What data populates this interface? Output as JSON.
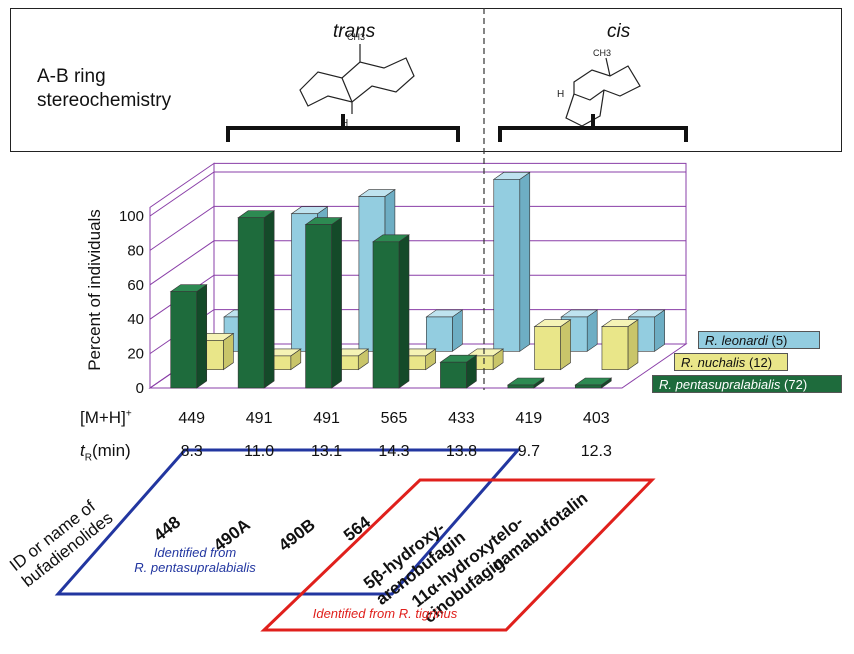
{
  "header": {
    "title_line1": "A-B ring",
    "title_line2": "stereochemistry",
    "trans_label": "trans",
    "cis_label": "cis",
    "methyl_label": "CH3",
    "h_label": "H"
  },
  "chart_data": {
    "type": "bar",
    "ylabel": "Percent of individuals",
    "yticks": [
      0,
      20,
      40,
      60,
      80,
      100
    ],
    "ylim": [
      0,
      100
    ],
    "categories": [
      "449",
      "491",
      "491",
      "565",
      "433",
      "419",
      "403"
    ],
    "series": [
      {
        "name": "R. pentasupralabialis",
        "count": "(72)",
        "color": "#1e6b3c",
        "values": [
          56,
          99,
          95,
          85,
          15,
          1,
          1
        ]
      },
      {
        "name": "R. nuchalis",
        "count": "(12)",
        "color": "#e9e689",
        "values": [
          17,
          8,
          8,
          8,
          8,
          25,
          25
        ]
      },
      {
        "name": "R. leonardi",
        "count": "(5)",
        "color": "#93cde0",
        "values": [
          20,
          80,
          90,
          20,
          100,
          20,
          20
        ]
      }
    ],
    "regions": [
      {
        "label": "trans",
        "columns": [
          0,
          1,
          2,
          3,
          4
        ]
      },
      {
        "label": "cis",
        "columns": [
          5,
          6
        ]
      }
    ]
  },
  "table": {
    "mh_label": "[M+H]",
    "mh_sup": "+",
    "tr_label_t": "t",
    "tr_label_sub": "R",
    "tr_label_rest": "(min)",
    "mh_values": [
      "449",
      "491",
      "491",
      "565",
      "433",
      "419",
      "403"
    ],
    "tr_values": [
      "8.3",
      "11.0",
      "13.1",
      "14.3",
      "13.8",
      "9.7",
      "12.3"
    ]
  },
  "compounds": {
    "axis_label_line1": "ID or name of",
    "axis_label_line2": "bufadienolides",
    "items": [
      {
        "line1": "448",
        "line2": ""
      },
      {
        "line1": "490A",
        "line2": ""
      },
      {
        "line1": "490B",
        "line2": ""
      },
      {
        "line1": "564",
        "line2": ""
      },
      {
        "line1": "5β-hydroxy-",
        "line2": "arenobufagin"
      },
      {
        "line1": "11α-hydroxytelo-",
        "line2": "cinobufagin"
      },
      {
        "line1": "gamabufotalin",
        "line2": ""
      }
    ],
    "identified_blue_line1": "Identified from",
    "identified_blue_line2": "R. pentasupralabialis",
    "identified_red": "Identified from R. tigrinus"
  }
}
